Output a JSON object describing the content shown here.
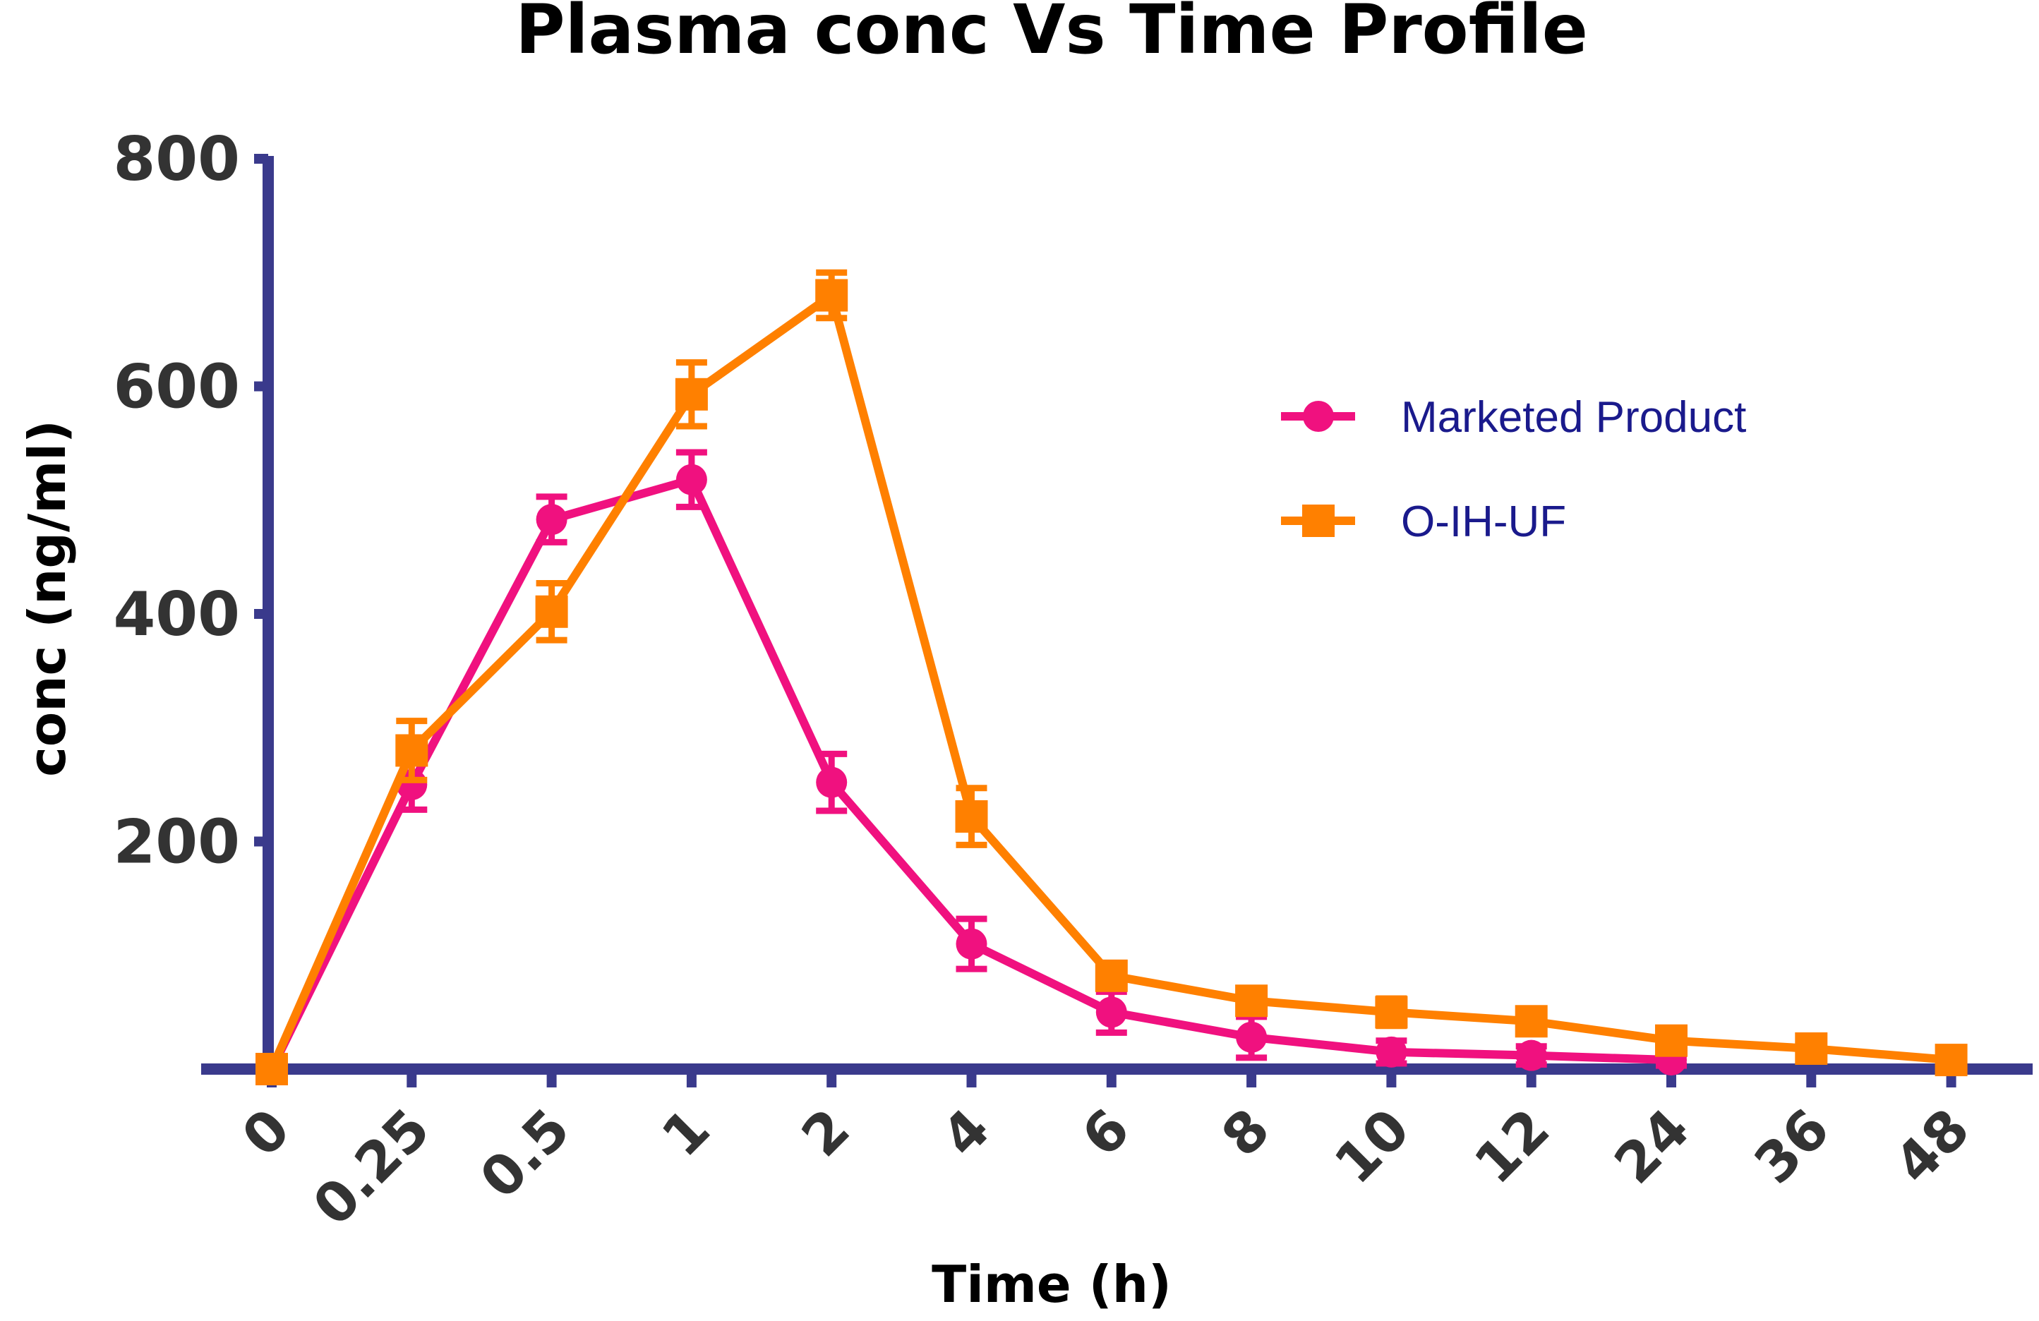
{
  "chart_data": {
    "type": "line",
    "title": "Plasma conc Vs Time Profile",
    "xlabel": "Time (h)",
    "ylabel": "conc (ng/ml)",
    "categories": [
      "0",
      "0.25",
      "0.5",
      "1",
      "2",
      "4",
      "6",
      "8",
      "10",
      "12",
      "24",
      "36",
      "48"
    ],
    "ylim": [
      0,
      800
    ],
    "yticks": [
      "800",
      "600",
      "400",
      "200"
    ],
    "ytick_values": [
      800,
      600,
      400,
      200
    ],
    "legend_position": "right",
    "axis_color": "#3a3a8c",
    "legend_text_color": "#1a1a8c",
    "series": [
      {
        "name": "Marketed Product",
        "marker": "circle",
        "color": "#f0117f",
        "values": [
          0,
          250,
          483,
          518,
          252,
          110,
          50,
          28,
          15,
          12,
          8,
          null,
          null
        ],
        "errors": [
          0,
          22,
          20,
          24,
          25,
          22,
          18,
          18,
          10,
          8,
          5,
          null,
          null
        ]
      },
      {
        "name": "O-IH-UF",
        "marker": "square",
        "color": "#ff8000",
        "values": [
          0,
          280,
          402,
          593,
          680,
          222,
          82,
          60,
          50,
          42,
          25,
          18,
          8
        ],
        "errors": [
          0,
          26,
          25,
          28,
          20,
          25,
          10,
          8,
          12,
          8,
          6,
          5,
          4
        ]
      }
    ]
  }
}
